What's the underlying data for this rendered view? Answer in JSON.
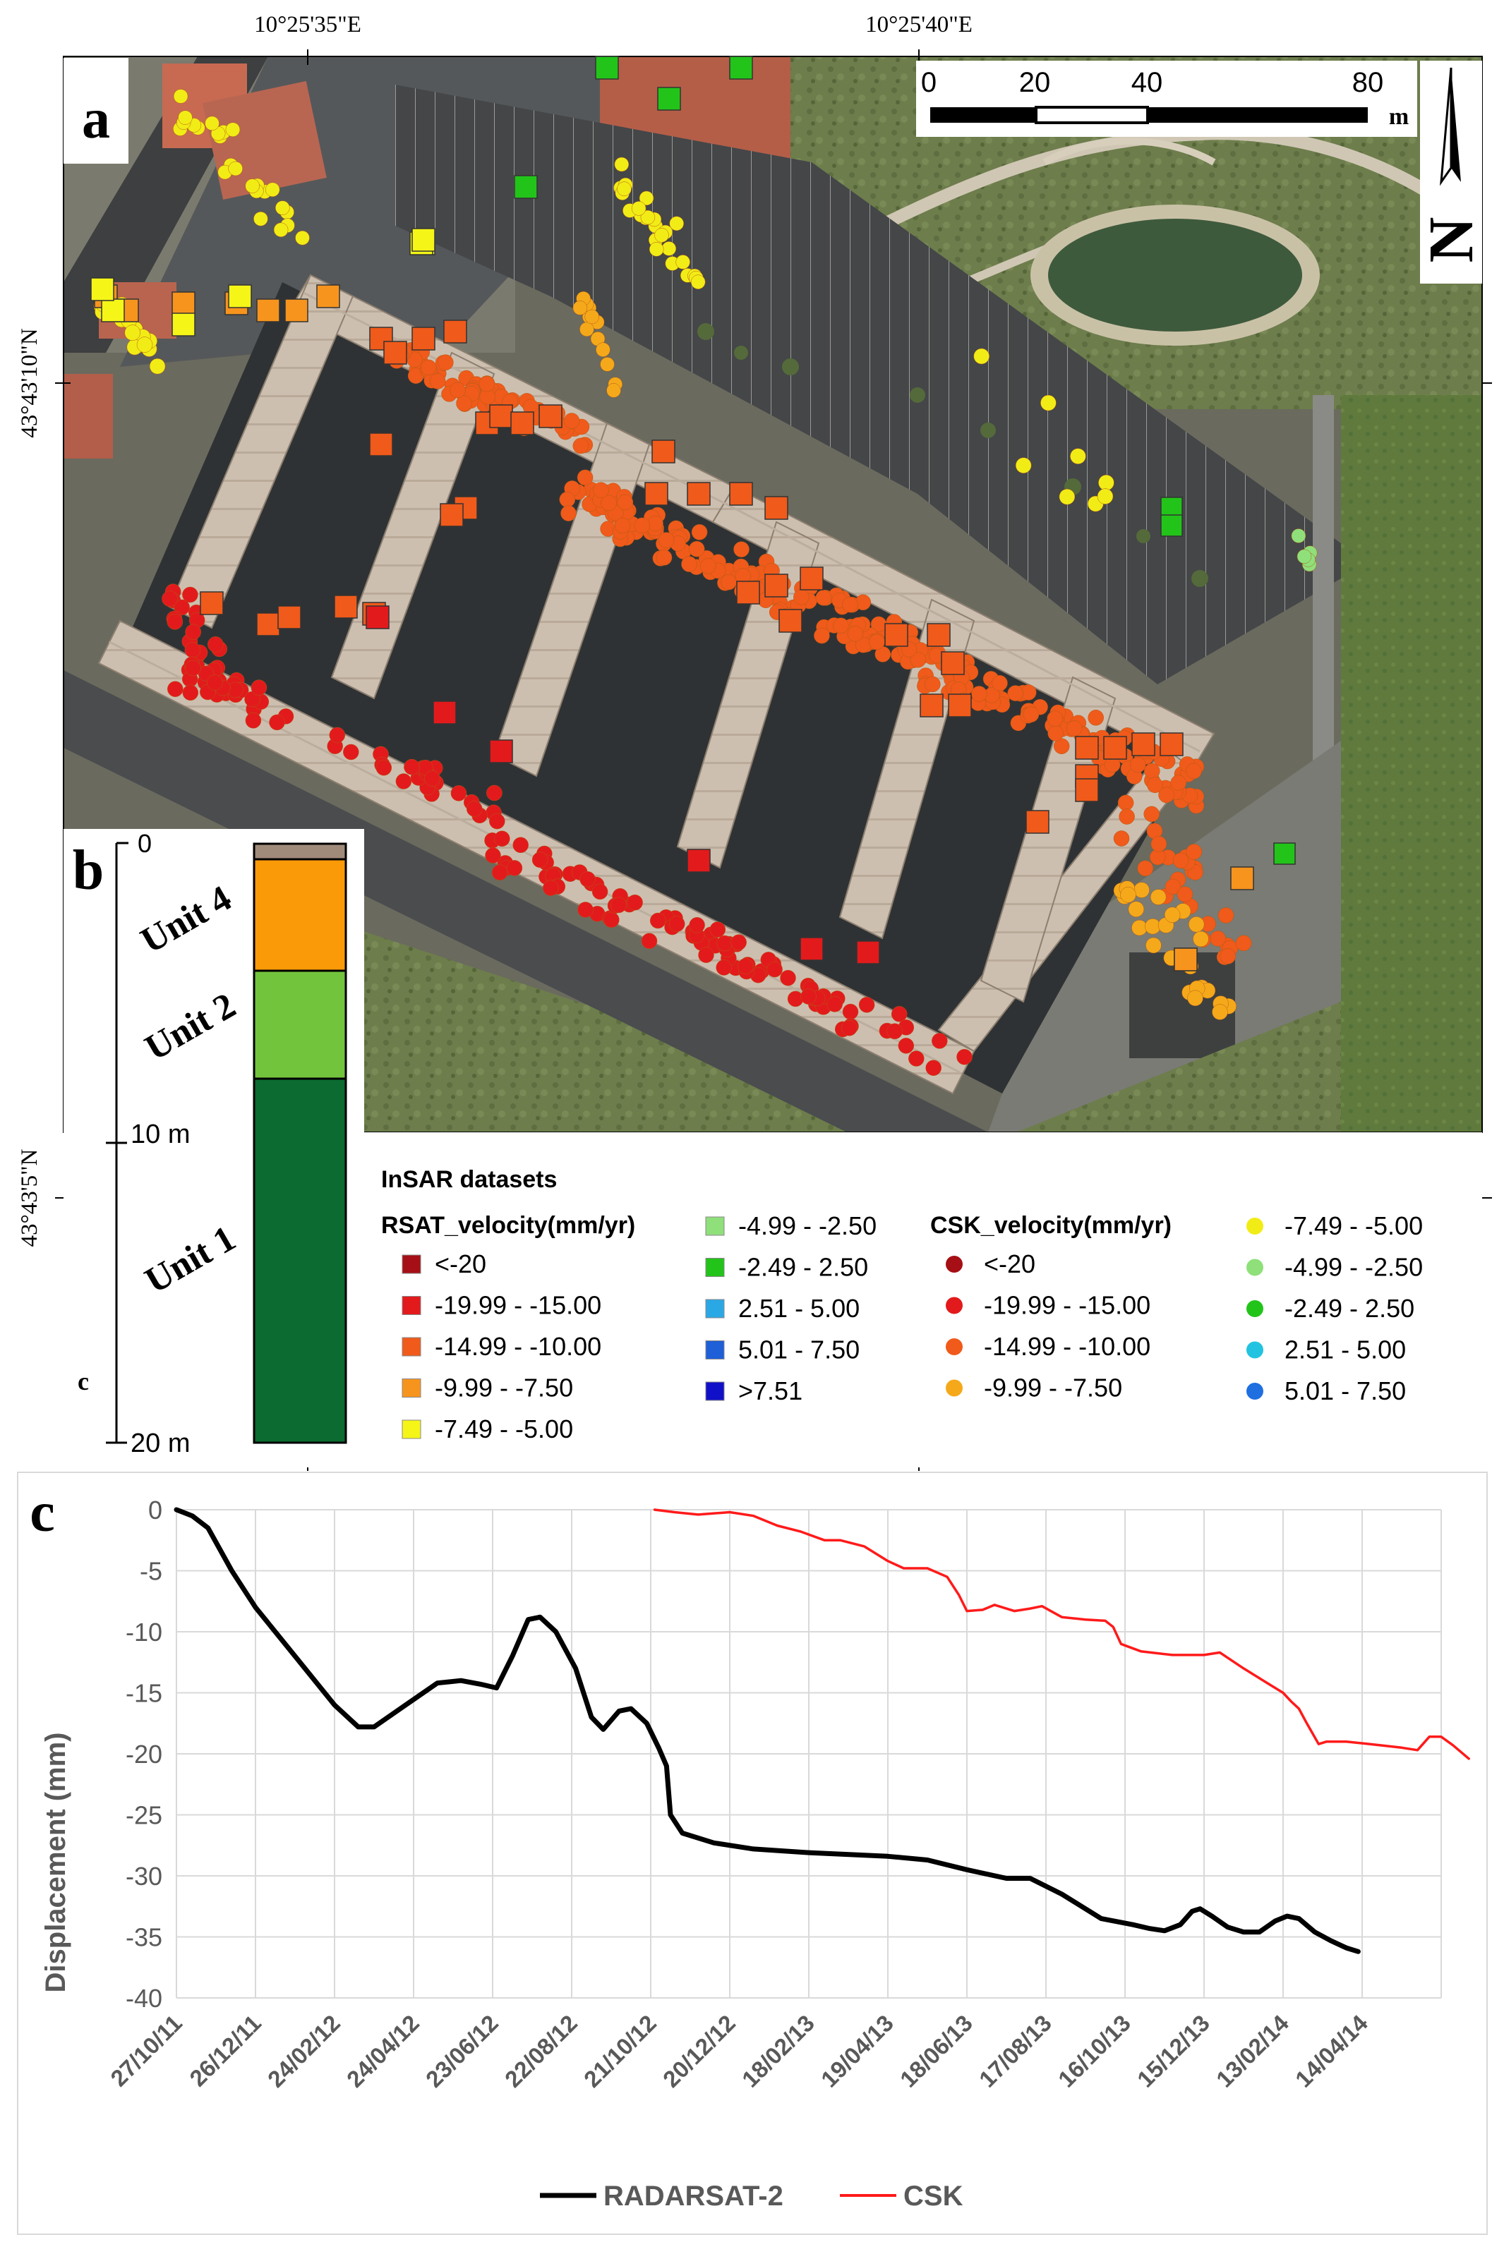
{
  "panel_a": {
    "label": "a",
    "top_axis": {
      "left_coord": "10°25'35\"E",
      "right_coord": "10°25'40\"E"
    },
    "left_axis": {
      "upper_coord": "43°43'10\"N",
      "lower_coord": "43°43'5\"N"
    },
    "scale_bar": {
      "ticks": [
        "0",
        "20",
        "40",
        "80"
      ],
      "unit": "m"
    },
    "north_arrow_label": "N",
    "legend": {
      "title": "InSAR datasets",
      "rsat_title": "RSAT_velocity(mm/yr)",
      "rsat_classes": [
        {
          "label": "<-20",
          "color": "#a50f15"
        },
        {
          "label": "-19.99 - -15.00",
          "color": "#e31a1c"
        },
        {
          "label": "-14.99 - -10.00",
          "color": "#f05a1a"
        },
        {
          "label": "-9.99 - -7.50",
          "color": "#f7941d"
        },
        {
          "label": "-7.49 - -5.00",
          "color": "#f5f518"
        },
        {
          "label": "-4.99 - -2.50",
          "color": "#8fe07a"
        },
        {
          "label": "-2.49 - 2.50",
          "color": "#22c41a"
        },
        {
          "label": "2.51 - 5.00",
          "color": "#2aa8e6"
        },
        {
          "label": "5.01 - 7.50",
          "color": "#1f5fd8"
        },
        {
          "label": ">7.51",
          "color": "#1010c8"
        }
      ],
      "csk_title": "CSK_velocity(mm/yr)",
      "csk_classes": [
        {
          "label": "<-20",
          "color": "#a50f15"
        },
        {
          "label": "-19.99 - -15.00",
          "color": "#e31a1c"
        },
        {
          "label": "-14.99 - -10.00",
          "color": "#f05a1a"
        },
        {
          "label": "-9.99 - -7.50",
          "color": "#f5a91a"
        },
        {
          "label": "-7.49 - -5.00",
          "color": "#f2ec16"
        },
        {
          "label": "-4.99 - -2.50",
          "color": "#8fe07a"
        },
        {
          "label": "-2.49 - 2.50",
          "color": "#22c41a"
        },
        {
          "label": "2.51 - 5.00",
          "color": "#22c3e0"
        },
        {
          "label": "5.01 - 7.50",
          "color": "#1f6fe0"
        }
      ]
    }
  },
  "panel_b": {
    "label": "b",
    "corner_label": "c",
    "depth_labels": [
      "0",
      "10 m",
      "20 m"
    ],
    "units": [
      {
        "label": "Unit 4",
        "color": "#fb9a09"
      },
      {
        "label": "Unit 2",
        "color": "#73c43d"
      },
      {
        "label": "Unit 1",
        "color": "#0b6b30"
      }
    ],
    "top_layer_color": "#a08a7a"
  },
  "panel_c": {
    "label": "c"
  },
  "chart_data": {
    "type": "line",
    "title": "",
    "xlabel": "",
    "ylabel": "Displacement (mm)",
    "ylim": [
      -40,
      0
    ],
    "yticks": [
      "0",
      "-5",
      "-10",
      "-15",
      "-20",
      "-25",
      "-30",
      "-35",
      "-40"
    ],
    "xtick_labels": [
      "27/10/11",
      "26/12/11",
      "24/02/12",
      "24/04/12",
      "23/06/12",
      "22/08/12",
      "21/10/12",
      "20/12/12",
      "18/02/13",
      "19/04/13",
      "18/06/13",
      "17/08/13",
      "16/10/13",
      "15/12/13",
      "13/02/14",
      "14/04/14"
    ],
    "series": [
      {
        "name": "RADARSAT-2",
        "color": "#000000",
        "points": [
          [
            0,
            0
          ],
          [
            0.2,
            -0.5
          ],
          [
            0.4,
            -1.5
          ],
          [
            0.7,
            -5
          ],
          [
            1,
            -8
          ],
          [
            1.5,
            -12
          ],
          [
            2,
            -16
          ],
          [
            2.3,
            -17.8
          ],
          [
            2.5,
            -17.8
          ],
          [
            2.9,
            -16
          ],
          [
            3.3,
            -14.2
          ],
          [
            3.6,
            -14
          ],
          [
            3.85,
            -14.3
          ],
          [
            4.05,
            -14.6
          ],
          [
            4.25,
            -12
          ],
          [
            4.45,
            -9
          ],
          [
            4.6,
            -8.8
          ],
          [
            4.8,
            -10
          ],
          [
            5.05,
            -13
          ],
          [
            5.25,
            -17
          ],
          [
            5.4,
            -18
          ],
          [
            5.6,
            -16.5
          ],
          [
            5.75,
            -16.3
          ],
          [
            5.95,
            -17.5
          ],
          [
            6.1,
            -19.5
          ],
          [
            6.2,
            -21
          ],
          [
            6.25,
            -25
          ],
          [
            6.4,
            -26.5
          ],
          [
            6.8,
            -27.3
          ],
          [
            7.3,
            -27.8
          ],
          [
            8,
            -28.1
          ],
          [
            9,
            -28.4
          ],
          [
            9.5,
            -28.7
          ],
          [
            10,
            -29.5
          ],
          [
            10.5,
            -30.2
          ],
          [
            10.8,
            -30.2
          ],
          [
            11.2,
            -31.5
          ],
          [
            11.7,
            -33.5
          ],
          [
            12.1,
            -34
          ],
          [
            12.3,
            -34.3
          ],
          [
            12.5,
            -34.5
          ],
          [
            12.7,
            -34
          ],
          [
            12.85,
            -32.9
          ],
          [
            12.95,
            -32.7
          ],
          [
            13.1,
            -33.3
          ],
          [
            13.3,
            -34.2
          ],
          [
            13.5,
            -34.6
          ],
          [
            13.7,
            -34.6
          ],
          [
            13.9,
            -33.7
          ],
          [
            14.05,
            -33.3
          ],
          [
            14.2,
            -33.5
          ],
          [
            14.4,
            -34.6
          ],
          [
            14.6,
            -35.3
          ],
          [
            14.8,
            -35.9
          ],
          [
            14.95,
            -36.2
          ]
        ]
      },
      {
        "name": "CSK",
        "color": "#ff1a1a",
        "points": [
          [
            6.05,
            0
          ],
          [
            6.3,
            -0.2
          ],
          [
            6.6,
            -0.4
          ],
          [
            7.0,
            -0.2
          ],
          [
            7.3,
            -0.5
          ],
          [
            7.6,
            -1.3
          ],
          [
            7.9,
            -1.8
          ],
          [
            8.2,
            -2.5
          ],
          [
            8.4,
            -2.5
          ],
          [
            8.7,
            -3
          ],
          [
            9,
            -4.2
          ],
          [
            9.2,
            -4.8
          ],
          [
            9.5,
            -4.8
          ],
          [
            9.75,
            -5.5
          ],
          [
            9.9,
            -7
          ],
          [
            10,
            -8.3
          ],
          [
            10.2,
            -8.2
          ],
          [
            10.35,
            -7.8
          ],
          [
            10.6,
            -8.3
          ],
          [
            10.8,
            -8.1
          ],
          [
            10.95,
            -7.9
          ],
          [
            11.2,
            -8.8
          ],
          [
            11.5,
            -9
          ],
          [
            11.75,
            -9.1
          ],
          [
            11.85,
            -9.6
          ],
          [
            11.95,
            -11
          ],
          [
            12.2,
            -11.6
          ],
          [
            12.6,
            -11.9
          ],
          [
            13,
            -11.9
          ],
          [
            13.2,
            -11.7
          ],
          [
            13.5,
            -13
          ],
          [
            13.8,
            -14.2
          ],
          [
            14.0,
            -15
          ],
          [
            14.1,
            -15.7
          ],
          [
            14.2,
            -16.3
          ],
          [
            14.3,
            -17.5
          ],
          [
            14.45,
            -19.2
          ],
          [
            14.55,
            -19
          ],
          [
            14.8,
            -19
          ],
          [
            15.1,
            -19.2
          ],
          [
            15.5,
            -19.5
          ],
          [
            15.7,
            -19.7
          ],
          [
            15.85,
            -18.6
          ],
          [
            16.0,
            -18.6
          ],
          [
            16.15,
            -19.3
          ],
          [
            16.35,
            -20.4
          ]
        ]
      }
    ],
    "legend": [
      "RADARSAT-2",
      "CSK"
    ]
  }
}
